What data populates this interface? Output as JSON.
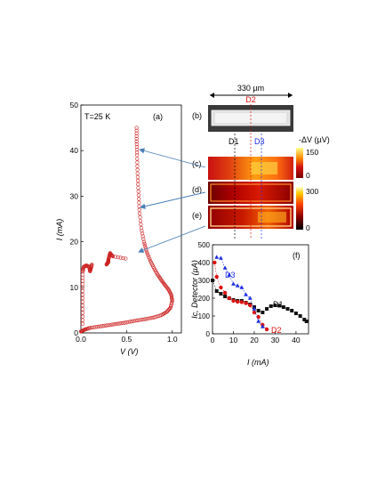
{
  "panel_a": {
    "label": "(a)",
    "temperature": "T=25 K",
    "xlabel": "V (V)",
    "ylabel": "I (mA)",
    "xticks": [
      "0.0",
      "0.5",
      "1.0"
    ],
    "yticks": [
      "0",
      "10",
      "20",
      "30",
      "40",
      "50"
    ]
  },
  "panel_b": {
    "label": "(b)",
    "scale_bar": "330 µm",
    "d2_label": "D2",
    "d1_label": "D1",
    "d3_label": "D3"
  },
  "panel_c": {
    "label": "(c)"
  },
  "panel_d": {
    "label": "(d)"
  },
  "panel_e": {
    "label": "(e)"
  },
  "colorbar_top": {
    "title": "-ΔV (µV)",
    "max": "150",
    "min": "0"
  },
  "colorbar_bottom": {
    "max": "300",
    "min": "0"
  },
  "panel_f": {
    "label": "(f)",
    "xlabel": "I (mA)",
    "ylabel": "Ic, Detector (µA)",
    "xticks": [
      "0",
      "10",
      "20",
      "30",
      "40"
    ],
    "yticks": [
      "0",
      "100",
      "200",
      "300",
      "400",
      "500"
    ],
    "d1": "D1",
    "d2": "D2",
    "d3": "D3"
  },
  "colors": {
    "iv_curve": "#cc2222",
    "d1": "#111111",
    "d2": "#dd1111",
    "d3": "#1a2ee0",
    "arrow": "#4a7fb8"
  },
  "chart_data": [
    {
      "type": "scatter",
      "panel": "(a)",
      "xlabel": "V (V)",
      "ylabel": "I (mA)",
      "xlim": [
        0,
        1.1
      ],
      "ylim": [
        0,
        50
      ],
      "series": [
        {
          "x": [
            0.0,
            0.02,
            0.05,
            0.1,
            0.2,
            0.3,
            0.4,
            0.5,
            0.6,
            0.7,
            0.8,
            0.88,
            0.94,
            0.98,
            1.0,
            0.99,
            0.96,
            0.92,
            0.88,
            0.84,
            0.8,
            0.76,
            0.72,
            0.69,
            0.66,
            0.64,
            0.63,
            0.62,
            0.615,
            0.61,
            0.61
          ],
          "y": [
            0.3,
            0.5,
            0.8,
            1.1,
            1.4,
            1.7,
            2.0,
            2.3,
            2.7,
            3.0,
            3.4,
            3.9,
            4.6,
            5.5,
            7.0,
            8.3,
            9.5,
            10.5,
            11.6,
            12.8,
            14.2,
            15.8,
            17.8,
            20.0,
            23.0,
            27.0,
            31.0,
            35.0,
            39.0,
            42.0,
            45.0
          ]
        },
        {
          "x": [
            0.02,
            0.02,
            0.02,
            0.02,
            0.03,
            0.06,
            0.09,
            0.1,
            0.11,
            0.12
          ],
          "y": [
            2.0,
            6.0,
            10.0,
            13.5,
            14.5,
            14.8,
            14.5,
            13.5,
            14.2,
            15.0
          ]
        },
        {
          "x": [
            0.28,
            0.29,
            0.3,
            0.3,
            0.31,
            0.32,
            0.33,
            0.35,
            0.49
          ],
          "y": [
            15.0,
            15.3,
            15.5,
            16.0,
            16.8,
            17.5,
            17.2,
            16.8,
            16.3
          ]
        }
      ]
    },
    {
      "type": "line",
      "panel": "(f)",
      "xlabel": "I (mA)",
      "ylabel": "Ic, Detector (µA)",
      "xlim": [
        0,
        46
      ],
      "ylim": [
        0,
        500
      ],
      "series": [
        {
          "name": "D1",
          "x": [
            0,
            2,
            4,
            6,
            8,
            10,
            12,
            14,
            16,
            18,
            20,
            22,
            24,
            26,
            28,
            30,
            32,
            34,
            36,
            38,
            40,
            42,
            44,
            45
          ],
          "y": [
            300,
            240,
            225,
            210,
            200,
            190,
            185,
            185,
            175,
            165,
            150,
            130,
            120,
            140,
            155,
            160,
            158,
            150,
            140,
            130,
            115,
            100,
            80,
            70
          ]
        },
        {
          "name": "D2",
          "x": [
            1,
            2,
            4,
            6,
            8,
            10,
            12,
            14,
            16,
            18,
            20,
            22,
            24,
            26
          ],
          "y": [
            400,
            320,
            260,
            230,
            200,
            185,
            180,
            178,
            172,
            160,
            120,
            95,
            50,
            25
          ]
        },
        {
          "name": "D3",
          "x": [
            2,
            4,
            6,
            8,
            10,
            12,
            14,
            16,
            18,
            20,
            22,
            24
          ],
          "y": [
            430,
            425,
            370,
            330,
            280,
            270,
            260,
            220,
            200,
            140,
            70,
            40
          ]
        }
      ]
    }
  ]
}
